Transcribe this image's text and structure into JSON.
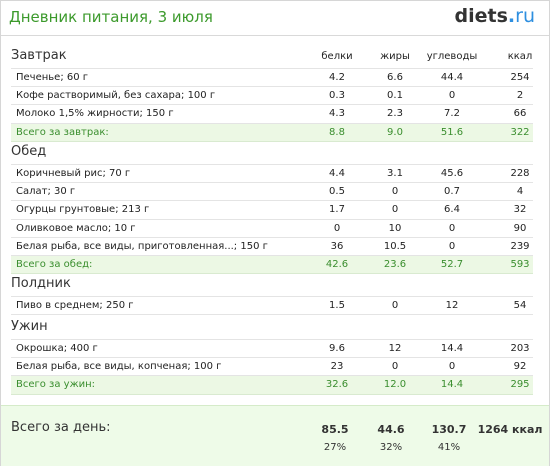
{
  "header": {
    "title": "Дневник питания, 3 июля",
    "logo_main": "diets",
    "logo_dot": ".",
    "logo_tld": "ru"
  },
  "columns": {
    "protein": "белки",
    "fat": "жиры",
    "carbs": "углеводы",
    "kcal": "ккал"
  },
  "meals": [
    {
      "title": "Завтрак",
      "items": [
        {
          "name": "Печенье; 60 г",
          "protein": "4.2",
          "fat": "6.6",
          "carbs": "44.4",
          "kcal": "254"
        },
        {
          "name": "Кофе растворимый, без сахара; 100 г",
          "protein": "0.3",
          "fat": "0.1",
          "carbs": "0",
          "kcal": "2"
        },
        {
          "name": "Молоко 1,5% жирности; 150 г",
          "protein": "4.3",
          "fat": "2.3",
          "carbs": "7.2",
          "kcal": "66"
        }
      ],
      "total": {
        "name": "Всего за завтрак:",
        "protein": "8.8",
        "fat": "9.0",
        "carbs": "51.6",
        "kcal": "322"
      }
    },
    {
      "title": "Обед",
      "items": [
        {
          "name": "Коричневый рис; 70 г",
          "protein": "4.4",
          "fat": "3.1",
          "carbs": "45.6",
          "kcal": "228"
        },
        {
          "name": "Салат; 30 г",
          "protein": "0.5",
          "fat": "0",
          "carbs": "0.7",
          "kcal": "4"
        },
        {
          "name": "Огурцы грунтовые; 213 г",
          "protein": "1.7",
          "fat": "0",
          "carbs": "6.4",
          "kcal": "32"
        },
        {
          "name": "Оливковое масло; 10 г",
          "protein": "0",
          "fat": "10",
          "carbs": "0",
          "kcal": "90"
        },
        {
          "name": "Белая рыба, все виды, приготовленная...; 150 г",
          "protein": "36",
          "fat": "10.5",
          "carbs": "0",
          "kcal": "239"
        }
      ],
      "total": {
        "name": "Всего за обед:",
        "protein": "42.6",
        "fat": "23.6",
        "carbs": "52.7",
        "kcal": "593"
      }
    },
    {
      "title": "Полдник",
      "items": [
        {
          "name": "Пиво в среднем; 250 г",
          "protein": "1.5",
          "fat": "0",
          "carbs": "12",
          "kcal": "54"
        }
      ]
    },
    {
      "title": "Ужин",
      "items": [
        {
          "name": "Окрошка; 400 г",
          "protein": "9.6",
          "fat": "12",
          "carbs": "14.4",
          "kcal": "203"
        },
        {
          "name": "Белая рыба, все виды, копченая; 100 г",
          "protein": "23",
          "fat": "0",
          "carbs": "0",
          "kcal": "92"
        }
      ],
      "total": {
        "name": "Всего за ужин:",
        "protein": "32.6",
        "fat": "12.0",
        "carbs": "14.4",
        "kcal": "295"
      }
    }
  ],
  "day_total": {
    "label": "Всего за день:",
    "protein": "85.5",
    "fat": "44.6",
    "carbs": "130.7",
    "kcal": "1264 ккал",
    "protein_pct": "27%",
    "fat_pct": "32%",
    "carbs_pct": "41%"
  }
}
